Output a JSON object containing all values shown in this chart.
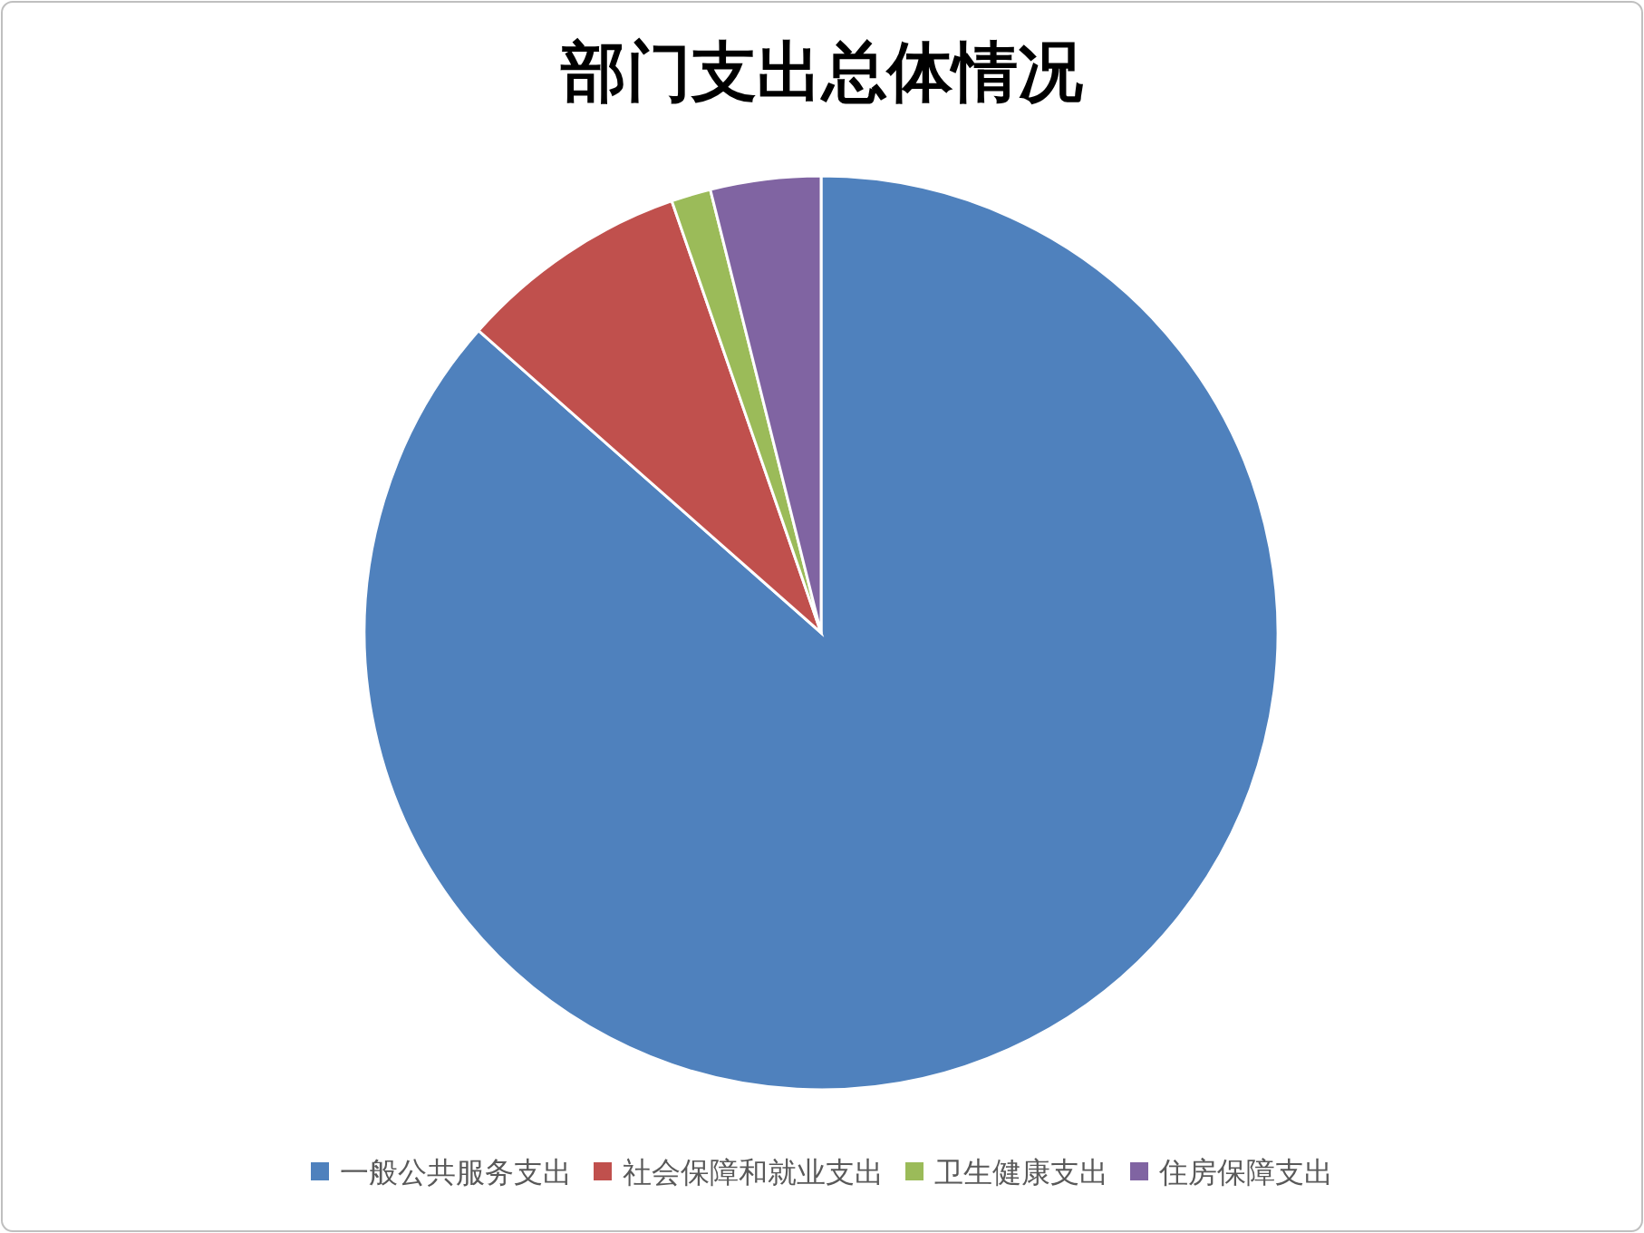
{
  "chart_data": {
    "type": "pie",
    "title": "部门支出总体情况",
    "categories": [
      "一般公共服务支出",
      "社会保障和就业支出",
      "卫生健康支出",
      "住房保障支出"
    ],
    "values": [
      86.5,
      8.2,
      1.4,
      3.9
    ],
    "colors": [
      "#4f81bd",
      "#c0504d",
      "#9bbb59",
      "#8064a2"
    ],
    "legend": "bottom"
  }
}
